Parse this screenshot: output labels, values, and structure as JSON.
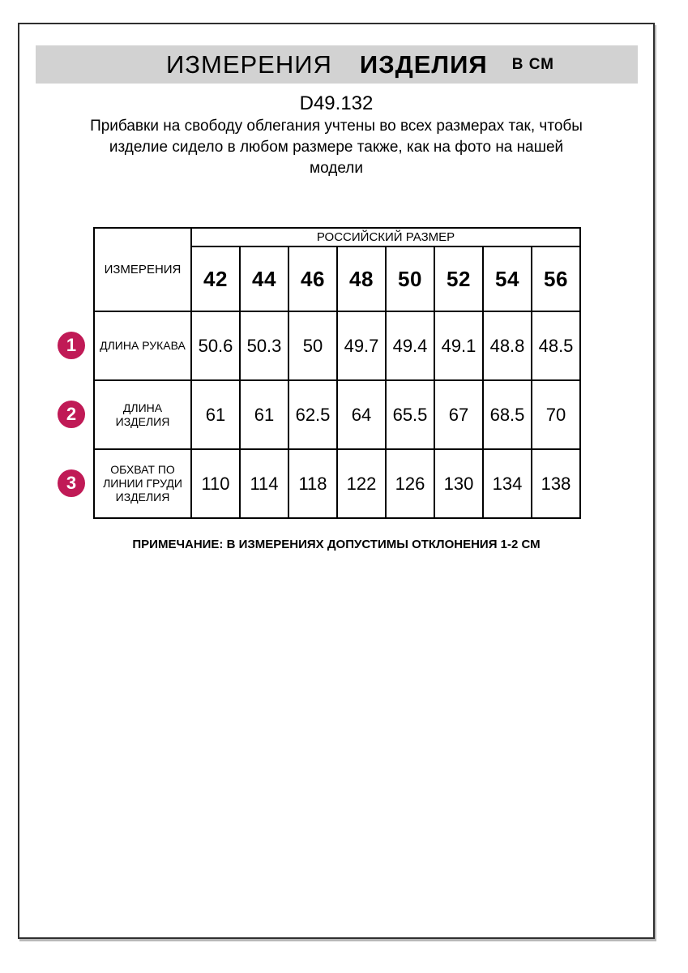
{
  "header": {
    "title_measurements": "ИЗМЕРЕНИЯ",
    "title_product": "ИЗДЕЛИЯ",
    "title_unit": "В СМ"
  },
  "product": {
    "code": "D49.132",
    "description": "Прибавки на свободу облегания учтены во всех размерах так, чтобы изделие сидело в любом размере также, как на фото на нашей модели"
  },
  "table": {
    "corner_header": "ИЗМЕРЕНИЯ",
    "group_header": "РОССИЙСКИЙ РАЗМЕР",
    "sizes": [
      "42",
      "44",
      "46",
      "48",
      "50",
      "52",
      "54",
      "56"
    ],
    "rows": [
      {
        "num": "1",
        "label": "ДЛИНА РУКАВА",
        "values": [
          "50.6",
          "50.3",
          "50",
          "49.7",
          "49.4",
          "49.1",
          "48.8",
          "48.5"
        ]
      },
      {
        "num": "2",
        "label": "ДЛИНА\nИЗДЕЛИЯ",
        "values": [
          "61",
          "61",
          "62.5",
          "64",
          "65.5",
          "67",
          "68.5",
          "70"
        ]
      },
      {
        "num": "3",
        "label": "ОБХВАТ ПО\nЛИНИИ ГРУДИ\nИЗДЕЛИЯ",
        "values": [
          "110",
          "114",
          "118",
          "122",
          "126",
          "130",
          "134",
          "138"
        ]
      }
    ]
  },
  "note": "ПРИМЕЧАНИЕ: В ИЗМЕРЕНИЯХ ДОПУСТИМЫ ОТКЛОНЕНИЯ 1-2 СМ",
  "colors": {
    "badge": "#c01a56",
    "title_bar_bg": "#d2d2d2",
    "table_border": "#000000",
    "frame_border": "#2f2f2f"
  }
}
